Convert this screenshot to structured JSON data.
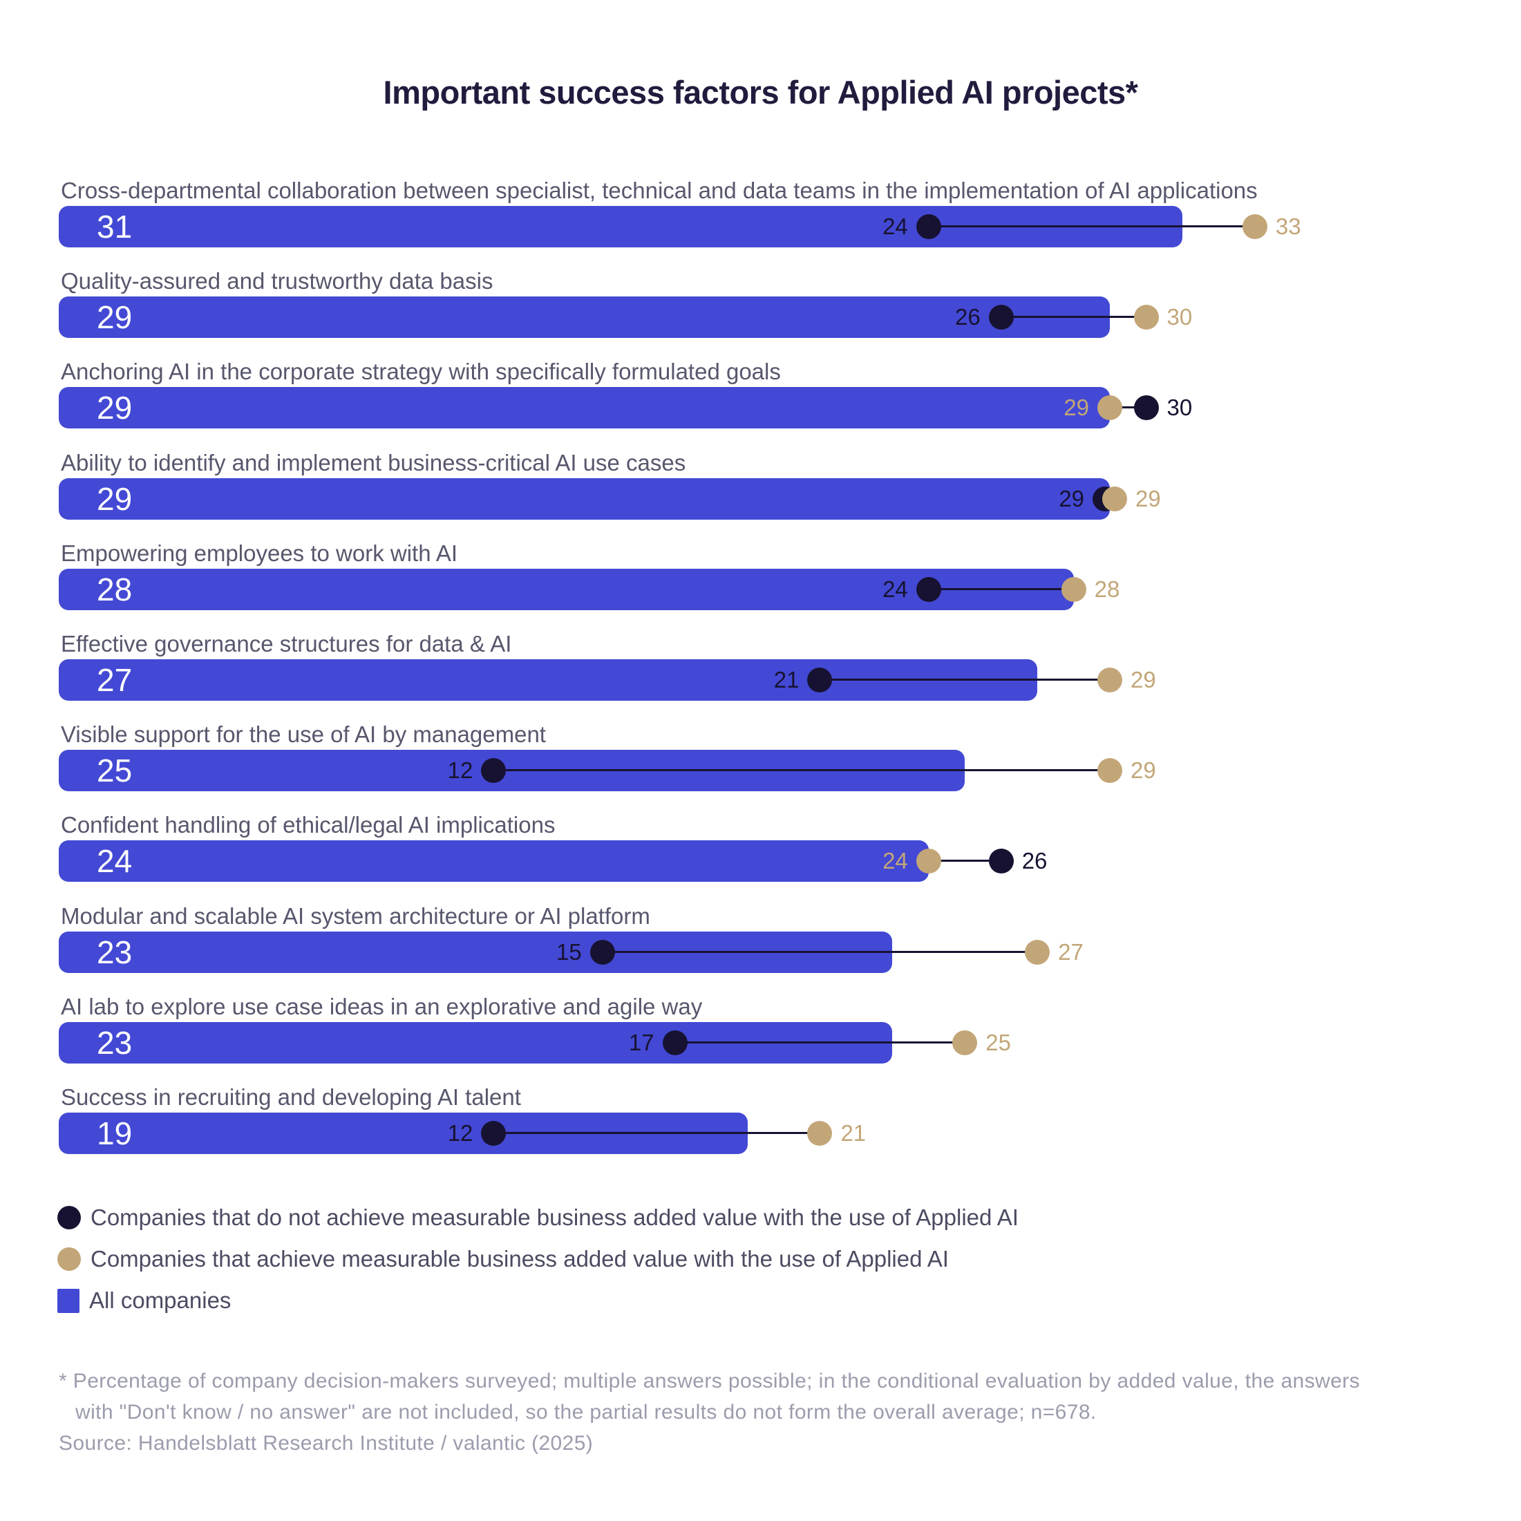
{
  "title": "Important success factors for Applied AI projects*",
  "colors": {
    "bar_blue": "#4349d4",
    "dot_dark": "#171231",
    "dot_tan": "#c3a678",
    "title_text": "#211c3e",
    "label_text": "#57576d",
    "legend_text": "#4b4b62",
    "footnote_text": "#9b9cac"
  },
  "chart_data": {
    "type": "bar",
    "orientation": "horizontal",
    "value_unit": "percent of company decision-makers",
    "xlim": [
      0,
      35
    ],
    "grid": false,
    "series": [
      {
        "name": "All companies",
        "mark": "bar",
        "color_key": "bar_blue"
      },
      {
        "name": "Companies that do not achieve measurable business added value with the use of Applied AI",
        "mark": "dot",
        "color_key": "dot_dark"
      },
      {
        "name": "Companies that achieve measurable business added value with the use of Applied AI",
        "mark": "dot",
        "color_key": "dot_tan"
      }
    ],
    "rows": [
      {
        "label": "Cross-departmental collaboration between specialist, technical and data teams in the implementation of AI applications",
        "all_companies": 31,
        "no_added_value": 24,
        "added_value": 33
      },
      {
        "label": "Quality-assured and trustworthy data basis",
        "all_companies": 29,
        "no_added_value": 26,
        "added_value": 30
      },
      {
        "label": "Anchoring AI in the corporate strategy with specifically formulated goals",
        "all_companies": 29,
        "no_added_value": 30,
        "added_value": 29
      },
      {
        "label": "Ability to identify and implement business-critical AI use cases",
        "all_companies": 29,
        "no_added_value": 29,
        "added_value": 29
      },
      {
        "label": "Empowering employees to work with AI",
        "all_companies": 28,
        "no_added_value": 24,
        "added_value": 28
      },
      {
        "label": "Effective governance structures for data & AI",
        "all_companies": 27,
        "no_added_value": 21,
        "added_value": 29
      },
      {
        "label": "Visible support for the use of AI by management",
        "all_companies": 25,
        "no_added_value": 12,
        "added_value": 29
      },
      {
        "label": "Confident handling of ethical/legal AI implications",
        "all_companies": 24,
        "no_added_value": 26,
        "added_value": 24
      },
      {
        "label": "Modular and scalable AI system architecture or AI platform",
        "all_companies": 23,
        "no_added_value": 15,
        "added_value": 27
      },
      {
        "label": "AI lab to explore use case ideas in an explorative and agile way",
        "all_companies": 23,
        "no_added_value": 17,
        "added_value": 25
      },
      {
        "label": "Success in recruiting and developing AI talent",
        "all_companies": 19,
        "no_added_value": 12,
        "added_value": 21
      }
    ]
  },
  "legend": [
    {
      "label": "Companies that do not achieve measurable business added value with the use of Applied AI",
      "marker": "circle",
      "color_key": "dot_dark"
    },
    {
      "label": "Companies that achieve measurable business added value with the use of Applied AI",
      "marker": "circle",
      "color_key": "dot_tan"
    },
    {
      "label": "All companies",
      "marker": "square",
      "color_key": "bar_blue"
    }
  ],
  "footnote": {
    "line1": "* Percentage of company decision-makers surveyed; multiple answers possible; in the conditional evaluation by added value, the answers",
    "line2": "with \"Don't know / no answer\" are not included, so the partial results do not form the overall average; n=678.",
    "source": "Source: Handelsblatt Research Institute / valantic (2025)"
  }
}
